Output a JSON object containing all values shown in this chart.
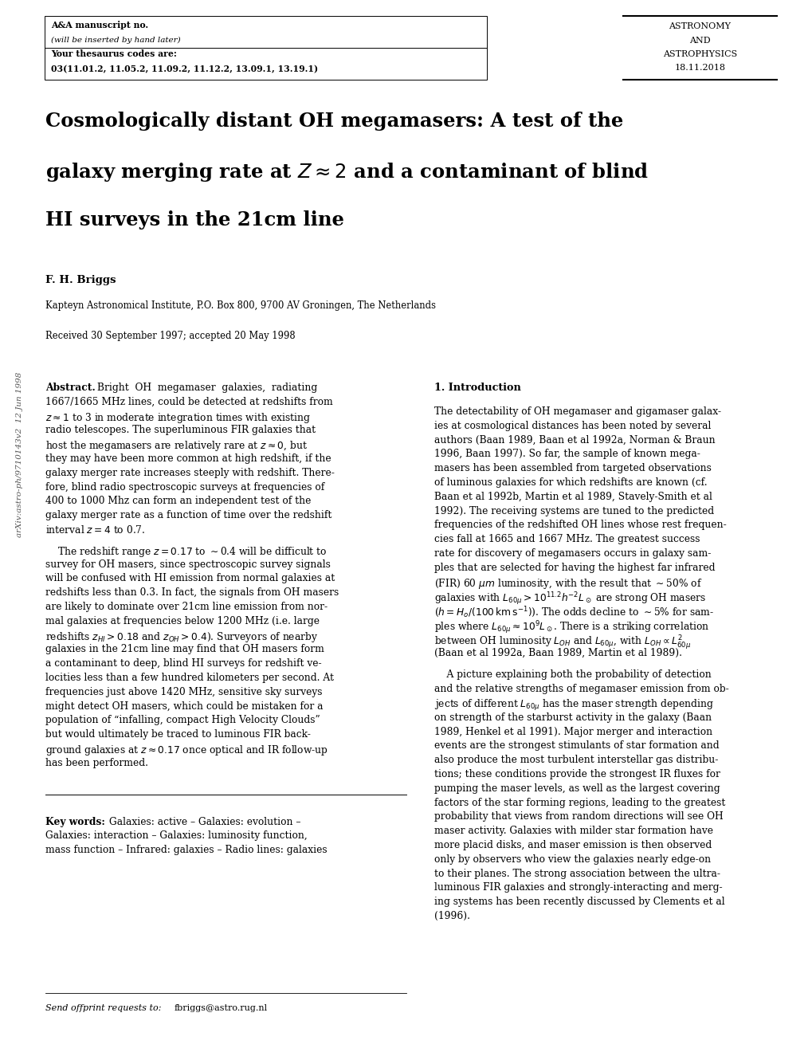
{
  "background_color": "#ffffff",
  "page_width": 10.2,
  "page_height": 13.2,
  "header_box1_line1": "A&A manuscript no.",
  "header_box1_line2": "(will be inserted by hand later)",
  "header_box1_line3": "Your thesaurus codes are:",
  "header_box1_line4": "03(11.01.2, 11.05.2, 11.09.2, 11.12.2, 13.09.1, 13.19.1)",
  "header_box2_line1": "ASTRONOMY",
  "header_box2_line2": "AND",
  "header_box2_line3": "ASTROPHYSICS",
  "header_box2_line4": "18.11.2018",
  "title_line1": "Cosmologically distant OH megamasers: A test of the",
  "title_line2": "galaxy merging rate at $Z \\approx 2$ and a contaminant of blind",
  "title_line3": "HI surveys in the 21cm line",
  "author": "F. H. Briggs",
  "affiliation": "Kapteyn Astronomical Institute, P.O. Box 800, 9700 AV Groningen, The Netherlands",
  "received": "Received 30 September 1997; accepted 20 May 1998",
  "arxiv_text": "arXiv:astro-ph/9710143v2  12 Jun 1998",
  "abstract_label": "Abstract.",
  "abstract_p1": [
    "Bright  OH  megamaser  galaxies,  radiating",
    "1667/1665 MHz lines, could be detected at redshifts from",
    "$z \\approx 1$ to 3 in moderate integration times with existing",
    "radio telescopes. The superluminous FIR galaxies that",
    "host the megamasers are relatively rare at $z \\approx 0$, but",
    "they may have been more common at high redshift, if the",
    "galaxy merger rate increases steeply with redshift. There-",
    "fore, blind radio spectroscopic surveys at frequencies of",
    "400 to 1000 Mhz can form an independent test of the",
    "galaxy merger rate as a function of time over the redshift",
    "interval $z = 4$ to 0.7."
  ],
  "abstract_p2": [
    "    The redshift range $z = 0.17$ to $\\sim$0.4 will be difficult to",
    "survey for OH masers, since spectroscopic survey signals",
    "will be confused with HI emission from normal galaxies at",
    "redshifts less than 0.3. In fact, the signals from OH masers",
    "are likely to dominate over 21cm line emission from nor-",
    "mal galaxies at frequencies below 1200 MHz (i.e. large",
    "redshifts $z_{HI} > 0.18$ and $z_{OH} > 0.4$). Surveyors of nearby",
    "galaxies in the 21cm line may find that OH masers form",
    "a contaminant to deep, blind HI surveys for redshift ve-",
    "locities less than a few hundred kilometers per second. At",
    "frequencies just above 1420 MHz, sensitive sky surveys",
    "might detect OH masers, which could be mistaken for a",
    "population of “infalling, compact High Velocity Clouds”",
    "but would ultimately be traced to luminous FIR back-",
    "ground galaxies at $z \\approx 0.17$ once optical and IR follow-up",
    "has been performed."
  ],
  "keywords_line1": "Galaxies: active – Galaxies: evolution –",
  "keywords_line2": "Galaxies: interaction – Galaxies: luminosity function,",
  "keywords_line3": "mass function – Infrared: galaxies – Radio lines: galaxies",
  "offprint_label": "Send offprint requests to:",
  "offprint_email": "fbriggs@astro.rug.nl",
  "intro_title": "1. Introduction",
  "intro_p1": [
    "The detectability of OH megamaser and gigamaser galax-",
    "ies at cosmological distances has been noted by several",
    "authors (Baan 1989, Baan et al 1992a, Norman & Braun",
    "1996, Baan 1997). So far, the sample of known mega-",
    "masers has been assembled from targeted observations",
    "of luminous galaxies for which redshifts are known (cf.",
    "Baan et al 1992b, Martin et al 1989, Stavely-Smith et al",
    "1992). The receiving systems are tuned to the predicted",
    "frequencies of the redshifted OH lines whose rest frequen-",
    "cies fall at 1665 and 1667 MHz. The greatest success",
    "rate for discovery of megamasers occurs in galaxy sam-",
    "ples that are selected for having the highest far infrared",
    "(FIR) 60 $\\mu m$ luminosity, with the result that $\\sim$50% of",
    "galaxies with $L_{60\\mu} > 10^{11.2}h^{-2}L_\\odot$ are strong OH masers",
    "($h = H_o/(100\\,{\\rm km\\,s}^{-1})$). The odds decline to $\\sim$5% for sam-",
    "ples where $L_{60\\mu} \\approx 10^9 L_\\odot$. There is a striking correlation",
    "between OH luminosity $L_{OH}$ and $L_{60\\mu}$, with $L_{OH} \\propto L^2_{60\\mu}$",
    "(Baan et al 1992a, Baan 1989, Martin et al 1989)."
  ],
  "intro_p2": [
    "    A picture explaining both the probability of detection",
    "and the relative strengths of megamaser emission from ob-",
    "jects of different $L_{60\\mu}$ has the maser strength depending",
    "on strength of the starburst activity in the galaxy (Baan",
    "1989, Henkel et al 1991). Major merger and interaction",
    "events are the strongest stimulants of star formation and",
    "also produce the most turbulent interstellar gas distribu-",
    "tions; these conditions provide the strongest IR fluxes for",
    "pumping the maser levels, as well as the largest covering",
    "factors of the star forming regions, leading to the greatest",
    "probability that views from random directions will see OH",
    "maser activity. Galaxies with milder star formation have",
    "more placid disks, and maser emission is then observed",
    "only by observers who view the galaxies nearly edge-on",
    "to their planes. The strong association between the ultra-",
    "luminous FIR galaxies and strongly-interacting and merg-",
    "ing systems has been recently discussed by Clements et al",
    "(1996)."
  ]
}
